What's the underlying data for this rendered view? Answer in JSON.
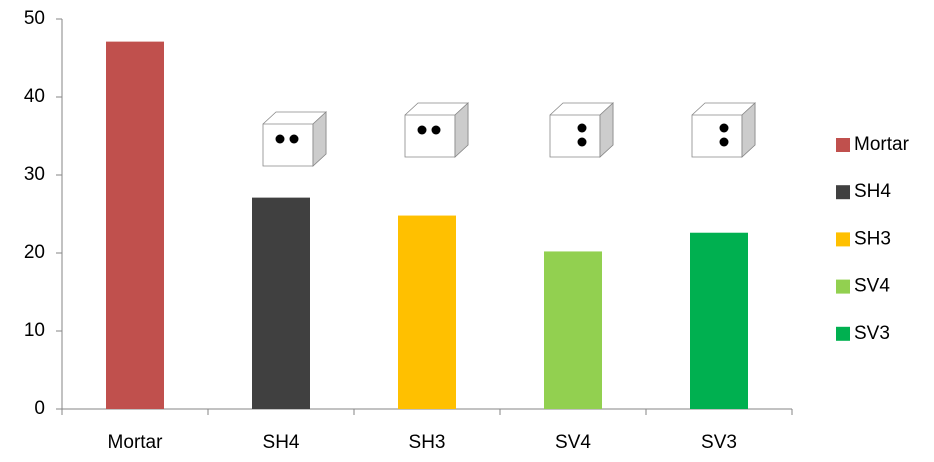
{
  "chart_data": {
    "type": "bar",
    "categories": [
      "Mortar",
      "SH4",
      "SH3",
      "SV4",
      "SV3"
    ],
    "values": [
      47.1,
      27.1,
      24.8,
      20.2,
      22.6
    ],
    "colors": [
      "#c0504d",
      "#404040",
      "#ffc000",
      "#92d050",
      "#00b050"
    ],
    "ylim": [
      0,
      50
    ],
    "yticks": [
      0,
      10,
      20,
      30,
      40,
      50
    ],
    "grid": false,
    "legend": "right"
  }
}
